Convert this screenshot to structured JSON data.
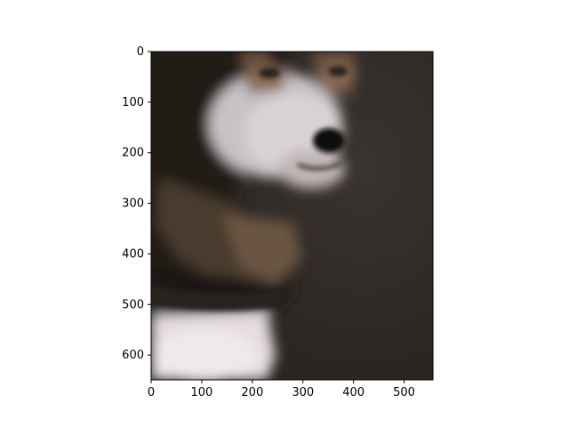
{
  "image": {
    "subject": "dog-portrait-photo",
    "colors": {
      "background_dark": "#2f2a25",
      "fur_dark": "#1f1a16",
      "fur_white": "#e6e1e4",
      "fur_tan": "#8a6a50",
      "collar": "#241f1b",
      "nose": "#0e0c0c"
    }
  },
  "axes": {
    "x_ticks": [
      "0",
      "100",
      "200",
      "300",
      "400",
      "500"
    ],
    "y_ticks": [
      "0",
      "100",
      "200",
      "300",
      "400",
      "500",
      "600"
    ],
    "xlim": [
      0,
      557
    ],
    "ylim": [
      0,
      649
    ]
  }
}
